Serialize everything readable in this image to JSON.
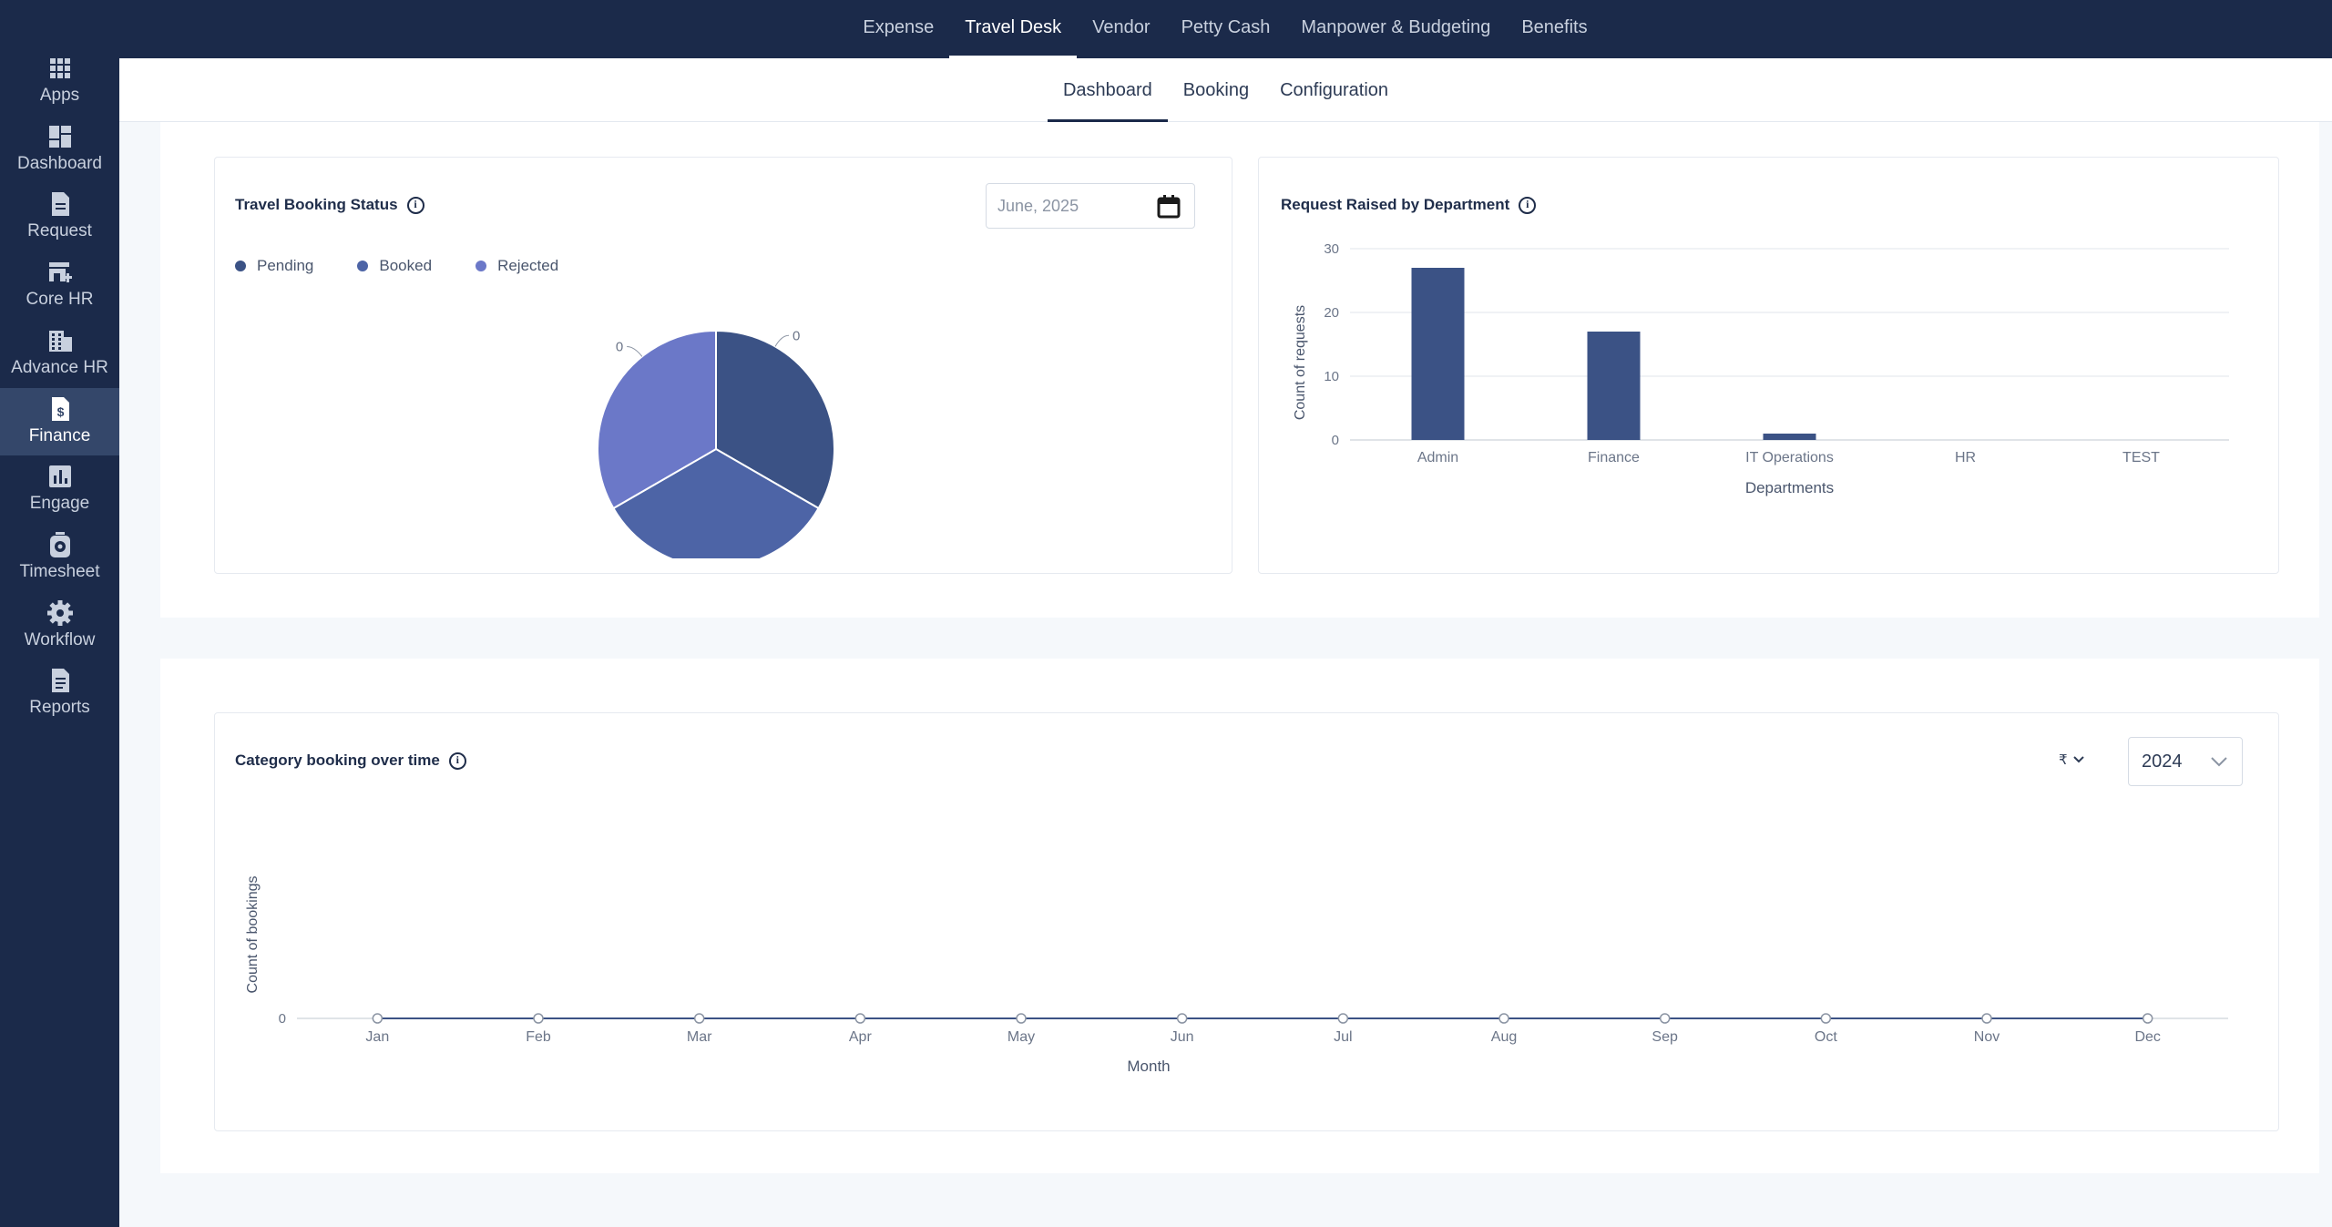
{
  "top_nav": [
    "Expense",
    "Travel Desk",
    "Vendor",
    "Petty Cash",
    "Manpower & Budgeting",
    "Benefits"
  ],
  "top_nav_active": 1,
  "sidebar": [
    {
      "label": "Apps",
      "icon": "apps-grid-icon"
    },
    {
      "label": "Dashboard",
      "icon": "dashboard-icon"
    },
    {
      "label": "Request",
      "icon": "document-icon"
    },
    {
      "label": "Core HR",
      "icon": "store-icon"
    },
    {
      "label": "Advance HR",
      "icon": "building-icon"
    },
    {
      "label": "Finance",
      "icon": "finance-icon"
    },
    {
      "label": "Engage",
      "icon": "bar-chart-icon"
    },
    {
      "label": "Timesheet",
      "icon": "timer-icon"
    },
    {
      "label": "Workflow",
      "icon": "gear-icon"
    },
    {
      "label": "Reports",
      "icon": "report-icon"
    }
  ],
  "sidebar_active": 5,
  "sub_tabs": [
    "Dashboard",
    "Booking",
    "Configuration"
  ],
  "sub_tab_active": 0,
  "booking_status": {
    "title": "Travel Booking Status",
    "date_value": "June, 2025",
    "legend": [
      "Pending",
      "Booked",
      "Rejected"
    ],
    "colors": [
      "#3b5285",
      "#4d64a6",
      "#6b78c8"
    ]
  },
  "department": {
    "title": "Request Raised by Department"
  },
  "category": {
    "title": "Category booking over time",
    "currency": "₹",
    "year": "2024"
  },
  "chart_data": [
    {
      "type": "pie",
      "labels": [
        "Pending",
        "Booked",
        "Rejected"
      ],
      "values": [
        0,
        0,
        0
      ],
      "data_labels": [
        "0",
        "0",
        "0"
      ]
    },
    {
      "type": "bar",
      "categories": [
        "Admin",
        "Finance",
        "IT Operations",
        "HR",
        "TEST"
      ],
      "values": [
        27,
        17,
        1,
        0,
        0
      ],
      "xlabel": "Departments",
      "ylabel": "Count of requests",
      "yticks": [
        0,
        10,
        20,
        30
      ],
      "ylim": [
        0,
        30
      ],
      "color": "#3b5285"
    },
    {
      "type": "line",
      "x": [
        "Jan",
        "Feb",
        "Mar",
        "Apr",
        "May",
        "Jun",
        "Jul",
        "Aug",
        "Sep",
        "Oct",
        "Nov",
        "Dec"
      ],
      "values": [
        0,
        0,
        0,
        0,
        0,
        0,
        0,
        0,
        0,
        0,
        0,
        0
      ],
      "xlabel": "Month",
      "ylabel": "Count of bookings",
      "yticks": [
        0
      ]
    }
  ]
}
